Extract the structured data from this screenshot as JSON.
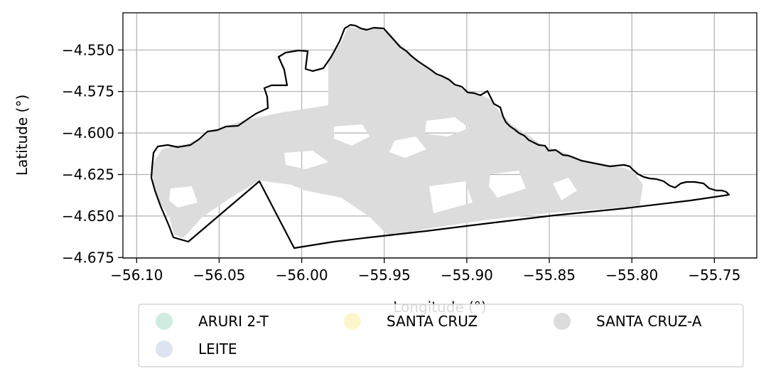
{
  "chart_data": {
    "type": "map",
    "xlabel": "Longitude (°)",
    "ylabel": "Latitude (°)",
    "xlim": [
      -56.1083,
      -55.7243
    ],
    "ylim": [
      -4.6753,
      -4.5276
    ],
    "x_ticks": [
      -56.1,
      -56.05,
      -56.0,
      -55.95,
      -55.9,
      -55.85,
      -55.8,
      -55.75
    ],
    "x_tick_labels": [
      "−56.10",
      "−56.05",
      "−56.00",
      "−55.95",
      "−55.90",
      "−55.85",
      "−55.80",
      "−55.75"
    ],
    "y_ticks": [
      -4.55,
      -4.575,
      -4.6,
      -4.625,
      -4.65,
      -4.675
    ],
    "y_tick_labels": [
      "−4.550",
      "−4.575",
      "−4.600",
      "−4.625",
      "−4.650",
      "−4.675"
    ],
    "grid": true,
    "legend": {
      "placement": "below plot",
      "columns": 3,
      "entries": [
        {
          "label": "ARURI 2-T",
          "color": "#d0ece0"
        },
        {
          "label": "LEITE",
          "color": "#dde3f2"
        },
        {
          "label": "SANTA CRUZ",
          "color": "#fdf5cc"
        },
        {
          "label": "SANTA CRUZ-A",
          "color": "#dcdcdc"
        }
      ]
    },
    "region_fill_color": "#dcdcdc",
    "boundary_color": "#000000"
  }
}
